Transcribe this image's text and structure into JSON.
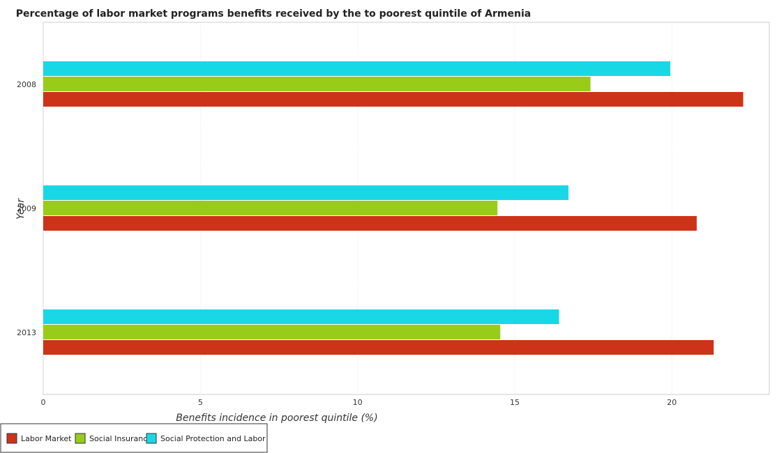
{
  "chart_data": {
    "type": "bar",
    "orientation": "horizontal",
    "title": "Percentage of labor market programs benefits received by the to poorest quintile of Armenia",
    "xlabel": "Benefits incidence in poorest quintile (%)",
    "ylabel": "Year",
    "categories": [
      "2008",
      "2009",
      "2013"
    ],
    "xlim": [
      0,
      23.1
    ],
    "xticks": [
      "0",
      "5",
      "10",
      "15",
      "20"
    ],
    "grid": true,
    "legend_position": "bottom-left",
    "series": [
      {
        "name": "Labor Market",
        "color": "#cc3319",
        "values": [
          22.27,
          20.79,
          21.33
        ]
      },
      {
        "name": "Social Insurance",
        "color": "#99cc19",
        "values": [
          17.41,
          14.45,
          14.54
        ]
      },
      {
        "name": "Social Protection and Labor",
        "color": "#19d8e5",
        "values": [
          19.95,
          16.71,
          16.41
        ]
      }
    ]
  }
}
